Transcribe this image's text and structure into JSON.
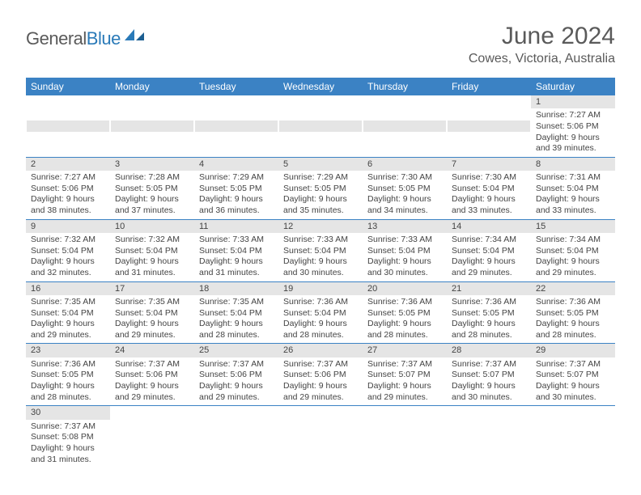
{
  "logo": {
    "text1": "General",
    "text2": "Blue"
  },
  "title": "June 2024",
  "location": "Cowes, Victoria, Australia",
  "colors": {
    "header_bg": "#3b82c4",
    "header_text": "#ffffff",
    "daynum_bg": "#e5e5e5",
    "border": "#3b82c4",
    "logo_gray": "#5a5a5a",
    "logo_blue": "#2a7ab8",
    "text": "#444444",
    "background": "#ffffff"
  },
  "day_headers": [
    "Sunday",
    "Monday",
    "Tuesday",
    "Wednesday",
    "Thursday",
    "Friday",
    "Saturday"
  ],
  "weeks": [
    [
      null,
      null,
      null,
      null,
      null,
      null,
      {
        "n": "1",
        "sunrise": "7:27 AM",
        "sunset": "5:06 PM",
        "dl1": "Daylight: 9 hours",
        "dl2": "and 39 minutes."
      }
    ],
    [
      {
        "n": "2",
        "sunrise": "7:27 AM",
        "sunset": "5:06 PM",
        "dl1": "Daylight: 9 hours",
        "dl2": "and 38 minutes."
      },
      {
        "n": "3",
        "sunrise": "7:28 AM",
        "sunset": "5:05 PM",
        "dl1": "Daylight: 9 hours",
        "dl2": "and 37 minutes."
      },
      {
        "n": "4",
        "sunrise": "7:29 AM",
        "sunset": "5:05 PM",
        "dl1": "Daylight: 9 hours",
        "dl2": "and 36 minutes."
      },
      {
        "n": "5",
        "sunrise": "7:29 AM",
        "sunset": "5:05 PM",
        "dl1": "Daylight: 9 hours",
        "dl2": "and 35 minutes."
      },
      {
        "n": "6",
        "sunrise": "7:30 AM",
        "sunset": "5:05 PM",
        "dl1": "Daylight: 9 hours",
        "dl2": "and 34 minutes."
      },
      {
        "n": "7",
        "sunrise": "7:30 AM",
        "sunset": "5:04 PM",
        "dl1": "Daylight: 9 hours",
        "dl2": "and 33 minutes."
      },
      {
        "n": "8",
        "sunrise": "7:31 AM",
        "sunset": "5:04 PM",
        "dl1": "Daylight: 9 hours",
        "dl2": "and 33 minutes."
      }
    ],
    [
      {
        "n": "9",
        "sunrise": "7:32 AM",
        "sunset": "5:04 PM",
        "dl1": "Daylight: 9 hours",
        "dl2": "and 32 minutes."
      },
      {
        "n": "10",
        "sunrise": "7:32 AM",
        "sunset": "5:04 PM",
        "dl1": "Daylight: 9 hours",
        "dl2": "and 31 minutes."
      },
      {
        "n": "11",
        "sunrise": "7:33 AM",
        "sunset": "5:04 PM",
        "dl1": "Daylight: 9 hours",
        "dl2": "and 31 minutes."
      },
      {
        "n": "12",
        "sunrise": "7:33 AM",
        "sunset": "5:04 PM",
        "dl1": "Daylight: 9 hours",
        "dl2": "and 30 minutes."
      },
      {
        "n": "13",
        "sunrise": "7:33 AM",
        "sunset": "5:04 PM",
        "dl1": "Daylight: 9 hours",
        "dl2": "and 30 minutes."
      },
      {
        "n": "14",
        "sunrise": "7:34 AM",
        "sunset": "5:04 PM",
        "dl1": "Daylight: 9 hours",
        "dl2": "and 29 minutes."
      },
      {
        "n": "15",
        "sunrise": "7:34 AM",
        "sunset": "5:04 PM",
        "dl1": "Daylight: 9 hours",
        "dl2": "and 29 minutes."
      }
    ],
    [
      {
        "n": "16",
        "sunrise": "7:35 AM",
        "sunset": "5:04 PM",
        "dl1": "Daylight: 9 hours",
        "dl2": "and 29 minutes."
      },
      {
        "n": "17",
        "sunrise": "7:35 AM",
        "sunset": "5:04 PM",
        "dl1": "Daylight: 9 hours",
        "dl2": "and 29 minutes."
      },
      {
        "n": "18",
        "sunrise": "7:35 AM",
        "sunset": "5:04 PM",
        "dl1": "Daylight: 9 hours",
        "dl2": "and 28 minutes."
      },
      {
        "n": "19",
        "sunrise": "7:36 AM",
        "sunset": "5:04 PM",
        "dl1": "Daylight: 9 hours",
        "dl2": "and 28 minutes."
      },
      {
        "n": "20",
        "sunrise": "7:36 AM",
        "sunset": "5:05 PM",
        "dl1": "Daylight: 9 hours",
        "dl2": "and 28 minutes."
      },
      {
        "n": "21",
        "sunrise": "7:36 AM",
        "sunset": "5:05 PM",
        "dl1": "Daylight: 9 hours",
        "dl2": "and 28 minutes."
      },
      {
        "n": "22",
        "sunrise": "7:36 AM",
        "sunset": "5:05 PM",
        "dl1": "Daylight: 9 hours",
        "dl2": "and 28 minutes."
      }
    ],
    [
      {
        "n": "23",
        "sunrise": "7:36 AM",
        "sunset": "5:05 PM",
        "dl1": "Daylight: 9 hours",
        "dl2": "and 28 minutes."
      },
      {
        "n": "24",
        "sunrise": "7:37 AM",
        "sunset": "5:06 PM",
        "dl1": "Daylight: 9 hours",
        "dl2": "and 29 minutes."
      },
      {
        "n": "25",
        "sunrise": "7:37 AM",
        "sunset": "5:06 PM",
        "dl1": "Daylight: 9 hours",
        "dl2": "and 29 minutes."
      },
      {
        "n": "26",
        "sunrise": "7:37 AM",
        "sunset": "5:06 PM",
        "dl1": "Daylight: 9 hours",
        "dl2": "and 29 minutes."
      },
      {
        "n": "27",
        "sunrise": "7:37 AM",
        "sunset": "5:07 PM",
        "dl1": "Daylight: 9 hours",
        "dl2": "and 29 minutes."
      },
      {
        "n": "28",
        "sunrise": "7:37 AM",
        "sunset": "5:07 PM",
        "dl1": "Daylight: 9 hours",
        "dl2": "and 30 minutes."
      },
      {
        "n": "29",
        "sunrise": "7:37 AM",
        "sunset": "5:07 PM",
        "dl1": "Daylight: 9 hours",
        "dl2": "and 30 minutes."
      }
    ],
    [
      {
        "n": "30",
        "sunrise": "7:37 AM",
        "sunset": "5:08 PM",
        "dl1": "Daylight: 9 hours",
        "dl2": "and 31 minutes."
      },
      null,
      null,
      null,
      null,
      null,
      null
    ]
  ],
  "labels": {
    "sunrise": "Sunrise: ",
    "sunset": "Sunset: "
  }
}
